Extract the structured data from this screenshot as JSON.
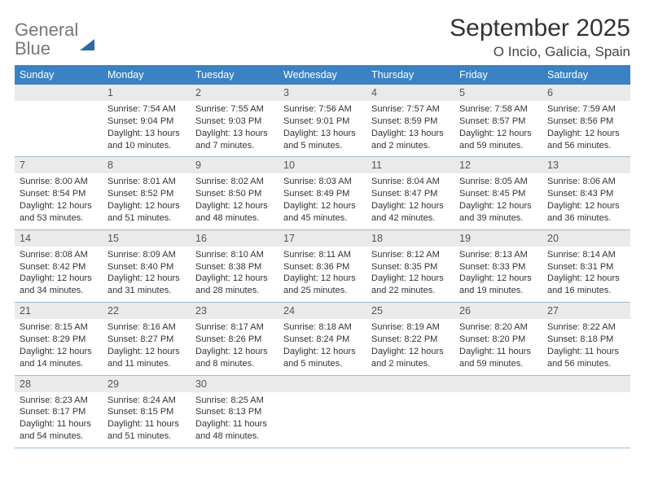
{
  "brand": {
    "part1": "General",
    "part2": "Blue"
  },
  "title": "September 2025",
  "location": "O Incio, Galicia, Spain",
  "day_headers": [
    "Sunday",
    "Monday",
    "Tuesday",
    "Wednesday",
    "Thursday",
    "Friday",
    "Saturday"
  ],
  "colors": {
    "header_bg": "#3b82c4",
    "header_text": "#ffffff",
    "daynum_bg": "#eaeaea",
    "divider": "#9fb8cc",
    "text": "#333333",
    "logo_gray": "#777777",
    "logo_blue": "#3b82c4"
  },
  "weeks": [
    {
      "nums": [
        "",
        "1",
        "2",
        "3",
        "4",
        "5",
        "6"
      ],
      "cells": [
        null,
        {
          "sunrise": "Sunrise: 7:54 AM",
          "sunset": "Sunset: 9:04 PM",
          "daylight": "Daylight: 13 hours and 10 minutes."
        },
        {
          "sunrise": "Sunrise: 7:55 AM",
          "sunset": "Sunset: 9:03 PM",
          "daylight": "Daylight: 13 hours and 7 minutes."
        },
        {
          "sunrise": "Sunrise: 7:56 AM",
          "sunset": "Sunset: 9:01 PM",
          "daylight": "Daylight: 13 hours and 5 minutes."
        },
        {
          "sunrise": "Sunrise: 7:57 AM",
          "sunset": "Sunset: 8:59 PM",
          "daylight": "Daylight: 13 hours and 2 minutes."
        },
        {
          "sunrise": "Sunrise: 7:58 AM",
          "sunset": "Sunset: 8:57 PM",
          "daylight": "Daylight: 12 hours and 59 minutes."
        },
        {
          "sunrise": "Sunrise: 7:59 AM",
          "sunset": "Sunset: 8:56 PM",
          "daylight": "Daylight: 12 hours and 56 minutes."
        }
      ]
    },
    {
      "nums": [
        "7",
        "8",
        "9",
        "10",
        "11",
        "12",
        "13"
      ],
      "cells": [
        {
          "sunrise": "Sunrise: 8:00 AM",
          "sunset": "Sunset: 8:54 PM",
          "daylight": "Daylight: 12 hours and 53 minutes."
        },
        {
          "sunrise": "Sunrise: 8:01 AM",
          "sunset": "Sunset: 8:52 PM",
          "daylight": "Daylight: 12 hours and 51 minutes."
        },
        {
          "sunrise": "Sunrise: 8:02 AM",
          "sunset": "Sunset: 8:50 PM",
          "daylight": "Daylight: 12 hours and 48 minutes."
        },
        {
          "sunrise": "Sunrise: 8:03 AM",
          "sunset": "Sunset: 8:49 PM",
          "daylight": "Daylight: 12 hours and 45 minutes."
        },
        {
          "sunrise": "Sunrise: 8:04 AM",
          "sunset": "Sunset: 8:47 PM",
          "daylight": "Daylight: 12 hours and 42 minutes."
        },
        {
          "sunrise": "Sunrise: 8:05 AM",
          "sunset": "Sunset: 8:45 PM",
          "daylight": "Daylight: 12 hours and 39 minutes."
        },
        {
          "sunrise": "Sunrise: 8:06 AM",
          "sunset": "Sunset: 8:43 PM",
          "daylight": "Daylight: 12 hours and 36 minutes."
        }
      ]
    },
    {
      "nums": [
        "14",
        "15",
        "16",
        "17",
        "18",
        "19",
        "20"
      ],
      "cells": [
        {
          "sunrise": "Sunrise: 8:08 AM",
          "sunset": "Sunset: 8:42 PM",
          "daylight": "Daylight: 12 hours and 34 minutes."
        },
        {
          "sunrise": "Sunrise: 8:09 AM",
          "sunset": "Sunset: 8:40 PM",
          "daylight": "Daylight: 12 hours and 31 minutes."
        },
        {
          "sunrise": "Sunrise: 8:10 AM",
          "sunset": "Sunset: 8:38 PM",
          "daylight": "Daylight: 12 hours and 28 minutes."
        },
        {
          "sunrise": "Sunrise: 8:11 AM",
          "sunset": "Sunset: 8:36 PM",
          "daylight": "Daylight: 12 hours and 25 minutes."
        },
        {
          "sunrise": "Sunrise: 8:12 AM",
          "sunset": "Sunset: 8:35 PM",
          "daylight": "Daylight: 12 hours and 22 minutes."
        },
        {
          "sunrise": "Sunrise: 8:13 AM",
          "sunset": "Sunset: 8:33 PM",
          "daylight": "Daylight: 12 hours and 19 minutes."
        },
        {
          "sunrise": "Sunrise: 8:14 AM",
          "sunset": "Sunset: 8:31 PM",
          "daylight": "Daylight: 12 hours and 16 minutes."
        }
      ]
    },
    {
      "nums": [
        "21",
        "22",
        "23",
        "24",
        "25",
        "26",
        "27"
      ],
      "cells": [
        {
          "sunrise": "Sunrise: 8:15 AM",
          "sunset": "Sunset: 8:29 PM",
          "daylight": "Daylight: 12 hours and 14 minutes."
        },
        {
          "sunrise": "Sunrise: 8:16 AM",
          "sunset": "Sunset: 8:27 PM",
          "daylight": "Daylight: 12 hours and 11 minutes."
        },
        {
          "sunrise": "Sunrise: 8:17 AM",
          "sunset": "Sunset: 8:26 PM",
          "daylight": "Daylight: 12 hours and 8 minutes."
        },
        {
          "sunrise": "Sunrise: 8:18 AM",
          "sunset": "Sunset: 8:24 PM",
          "daylight": "Daylight: 12 hours and 5 minutes."
        },
        {
          "sunrise": "Sunrise: 8:19 AM",
          "sunset": "Sunset: 8:22 PM",
          "daylight": "Daylight: 12 hours and 2 minutes."
        },
        {
          "sunrise": "Sunrise: 8:20 AM",
          "sunset": "Sunset: 8:20 PM",
          "daylight": "Daylight: 11 hours and 59 minutes."
        },
        {
          "sunrise": "Sunrise: 8:22 AM",
          "sunset": "Sunset: 8:18 PM",
          "daylight": "Daylight: 11 hours and 56 minutes."
        }
      ]
    },
    {
      "nums": [
        "28",
        "29",
        "30",
        "",
        "",
        "",
        ""
      ],
      "cells": [
        {
          "sunrise": "Sunrise: 8:23 AM",
          "sunset": "Sunset: 8:17 PM",
          "daylight": "Daylight: 11 hours and 54 minutes."
        },
        {
          "sunrise": "Sunrise: 8:24 AM",
          "sunset": "Sunset: 8:15 PM",
          "daylight": "Daylight: 11 hours and 51 minutes."
        },
        {
          "sunrise": "Sunrise: 8:25 AM",
          "sunset": "Sunset: 8:13 PM",
          "daylight": "Daylight: 11 hours and 48 minutes."
        },
        null,
        null,
        null,
        null
      ]
    }
  ]
}
